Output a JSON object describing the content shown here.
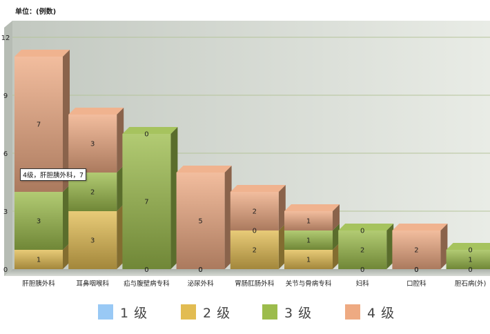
{
  "chart_data": {
    "type": "bar",
    "stacked": true,
    "unit_label": "单位：(例数)",
    "categories": [
      "肝胆胰外科",
      "耳鼻咽喉科",
      "疝与腹壁病专科",
      "泌尿外科",
      "胃肠肛肠外科",
      "关节与骨病专科",
      "妇科",
      "口腔科",
      "胆石病(外)"
    ],
    "series": [
      {
        "name": "1 级",
        "color": "#99c9f5",
        "values": [
          0,
          0,
          0,
          0,
          0,
          0,
          0,
          0,
          0
        ]
      },
      {
        "name": "2 级",
        "color": "#e2bc52",
        "values": [
          1,
          3,
          0,
          0,
          2,
          1,
          0,
          0,
          0
        ]
      },
      {
        "name": "3 级",
        "color": "#9cbc4c",
        "values": [
          3,
          2,
          7,
          0,
          0,
          1,
          2,
          0,
          1
        ]
      },
      {
        "name": "4 级",
        "color": "#eeaa82",
        "values": [
          7,
          3,
          0,
          5,
          2,
          1,
          0,
          2,
          0
        ]
      }
    ],
    "ylim": [
      0,
      12
    ],
    "yticks": [
      0,
      3,
      6,
      9,
      12
    ],
    "grid": true,
    "legend_position": "bottom",
    "tooltip": "4级，肝胆胰外科，7"
  }
}
